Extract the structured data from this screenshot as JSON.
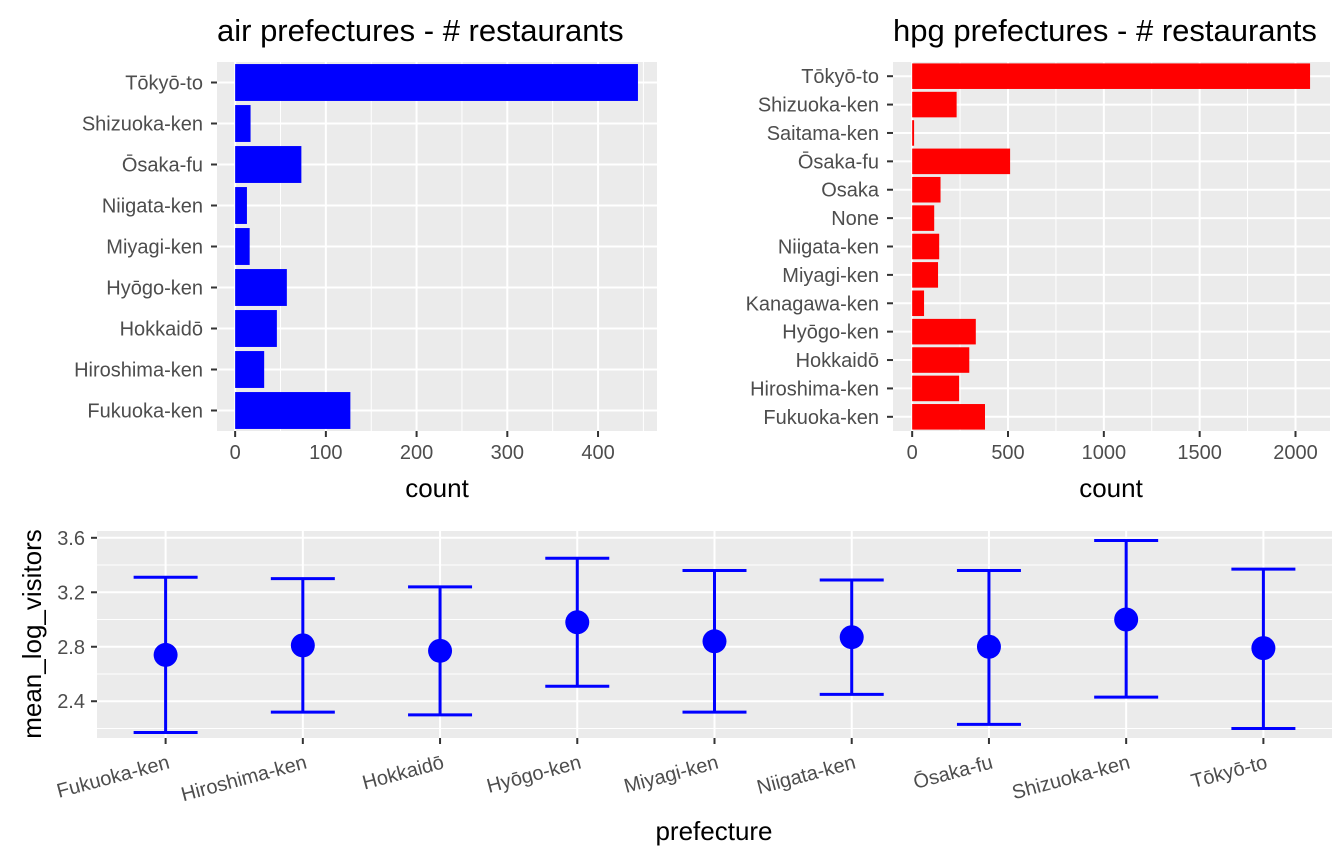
{
  "chart_data": [
    {
      "type": "bar",
      "orientation": "horizontal",
      "title": "air prefectures - # restaurants",
      "xlabel": "count",
      "ylabel": "",
      "categories": [
        "Tōkyō-to",
        "Shizuoka-ken",
        "Ōsaka-fu",
        "Niigata-ken",
        "Miyagi-ken",
        "Hyōgo-ken",
        "Hokkaidō",
        "Hiroshima-ken",
        "Fukuoka-ken"
      ],
      "values": [
        444,
        17,
        73,
        13,
        16,
        57,
        46,
        32,
        127
      ],
      "xlim": [
        -20,
        465
      ],
      "xticks": [
        0,
        100,
        200,
        300,
        400
      ],
      "color": "#0000ff",
      "grid": true
    },
    {
      "type": "bar",
      "orientation": "horizontal",
      "title": "hpg prefectures - # restaurants",
      "xlabel": "count",
      "ylabel": "",
      "categories": [
        "Tōkyō-to",
        "Shizuoka-ken",
        "Saitama-ken",
        "Ōsaka-fu",
        "Osaka",
        "None",
        "Niigata-ken",
        "Miyagi-ken",
        "Kanagawa-ken",
        "Hyōgo-ken",
        "Hokkaidō",
        "Hiroshima-ken",
        "Fukuoka-ken"
      ],
      "values": [
        2076,
        232,
        10,
        511,
        148,
        115,
        141,
        135,
        62,
        332,
        298,
        245,
        380
      ],
      "xlim": [
        -100,
        2180
      ],
      "xticks": [
        0,
        500,
        1000,
        1500,
        2000
      ],
      "color": "#ff0000",
      "grid": true
    },
    {
      "type": "errorbar",
      "title": "",
      "xlabel": "prefecture",
      "ylabel": "mean_log_visitors",
      "categories": [
        "Fukuoka-ken",
        "Hiroshima-ken",
        "Hokkaidō",
        "Hyōgo-ken",
        "Miyagi-ken",
        "Niigata-ken",
        "Ōsaka-fu",
        "Shizuoka-ken",
        "Tōkyō-to"
      ],
      "mean": [
        2.74,
        2.81,
        2.77,
        2.98,
        2.84,
        2.87,
        2.8,
        3.0,
        2.79
      ],
      "lower": [
        2.17,
        2.32,
        2.3,
        2.51,
        2.32,
        2.45,
        2.23,
        2.43,
        2.2
      ],
      "upper": [
        3.31,
        3.3,
        3.24,
        3.45,
        3.36,
        3.29,
        3.36,
        3.58,
        3.37
      ],
      "ylim": [
        2.13,
        3.65
      ],
      "yticks": [
        2.4,
        2.8,
        3.2,
        3.6
      ],
      "ytick_labels": [
        "2.4",
        "2.8",
        "3.2",
        "3.6"
      ],
      "color": "#0000ff",
      "grid": true,
      "xtick_rotation": -15
    }
  ]
}
